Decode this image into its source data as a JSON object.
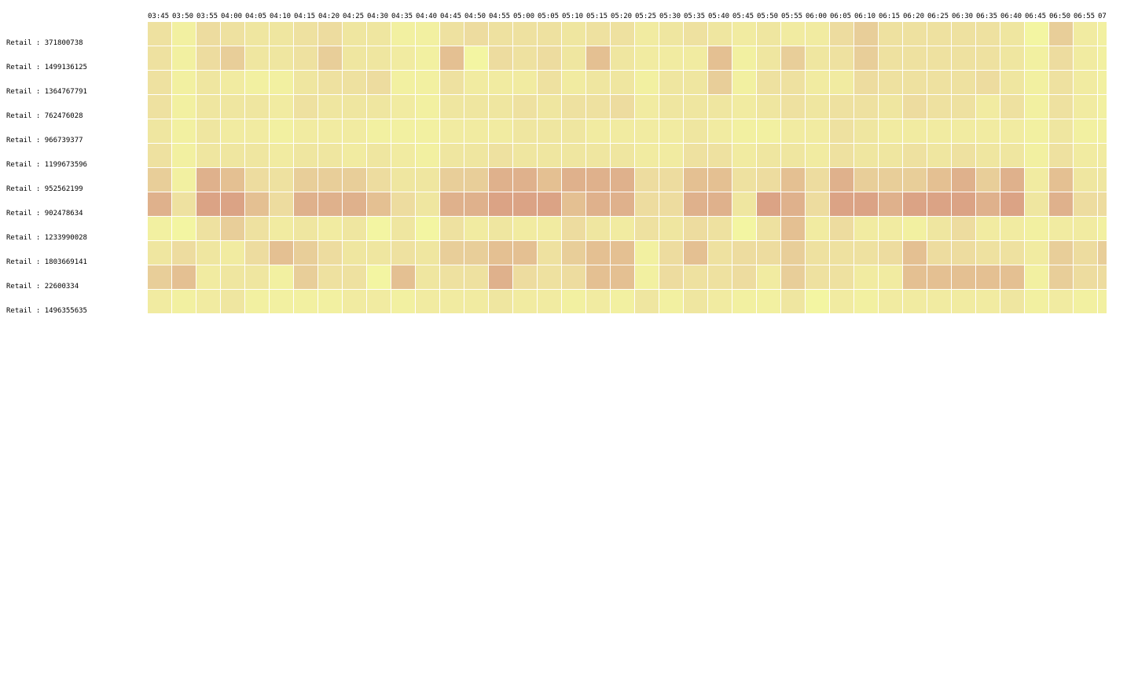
{
  "chart_data": {
    "type": "heatmap",
    "title": "",
    "xlabel": "",
    "ylabel": "",
    "color_scale": {
      "low": "#f3f5a2",
      "mid": "#eddc9f",
      "high": "#d6957f"
    },
    "value_range": [
      0,
      10
    ],
    "x": [
      "03:45",
      "03:50",
      "03:55",
      "04:00",
      "04:05",
      "04:10",
      "04:15",
      "04:20",
      "04:25",
      "04:30",
      "04:35",
      "04:40",
      "04:45",
      "04:50",
      "04:55",
      "05:00",
      "05:05",
      "05:10",
      "05:15",
      "05:20",
      "05:25",
      "05:30",
      "05:35",
      "05:40",
      "05:45",
      "05:50",
      "05:55",
      "06:00",
      "06:05",
      "06:10",
      "06:15",
      "06:20",
      "06:25",
      "06:30",
      "06:35",
      "06:40",
      "06:45",
      "06:50",
      "06:55",
      "07"
    ],
    "y": [
      "Retail : 371800738",
      "Retail : 1499136125",
      "Retail : 1364767791",
      "Retail : 762476028",
      "Retail : 966739377",
      "Retail : 1199673596",
      "Retail : 952562199",
      "Retail : 902478634",
      "Retail : 1233990028",
      "Retail : 1803669141",
      "Retail : 22600334",
      "Retail : 1496355635"
    ],
    "values": [
      [
        4,
        1,
        5,
        4,
        3,
        3,
        4,
        5,
        3,
        3,
        1,
        1,
        4,
        5,
        4,
        4,
        4,
        3,
        4,
        4,
        2,
        3,
        4,
        3,
        2,
        3,
        2,
        2,
        5,
        6,
        4,
        4,
        4,
        4,
        4,
        3,
        0,
        6,
        2,
        1
      ],
      [
        4,
        1,
        5,
        6,
        3,
        3,
        4,
        6,
        3,
        3,
        2,
        1,
        7,
        0,
        5,
        4,
        5,
        3,
        7,
        3,
        2,
        2,
        2,
        7,
        1,
        3,
        6,
        3,
        4,
        6,
        4,
        4,
        4,
        4,
        4,
        3,
        1,
        5,
        2,
        1
      ],
      [
        4,
        1,
        3,
        2,
        1,
        1,
        3,
        4,
        4,
        5,
        1,
        1,
        4,
        2,
        2,
        2,
        4,
        2,
        3,
        3,
        1,
        3,
        3,
        6,
        1,
        4,
        4,
        2,
        2,
        5,
        4,
        4,
        4,
        4,
        5,
        3,
        1,
        4,
        2,
        1
      ],
      [
        4,
        1,
        3,
        3,
        3,
        2,
        4,
        3,
        3,
        3,
        2,
        1,
        3,
        3,
        3,
        4,
        3,
        4,
        4,
        5,
        2,
        3,
        3,
        3,
        2,
        3,
        4,
        3,
        4,
        4,
        3,
        5,
        4,
        4,
        2,
        4,
        1,
        4,
        2,
        1
      ],
      [
        3,
        1,
        3,
        2,
        2,
        1,
        2,
        2,
        2,
        1,
        1,
        1,
        2,
        2,
        2,
        3,
        3,
        3,
        2,
        2,
        2,
        2,
        3,
        2,
        1,
        1,
        2,
        2,
        4,
        3,
        2,
        2,
        2,
        2,
        2,
        2,
        1,
        3,
        1,
        1
      ],
      [
        4,
        1,
        3,
        3,
        3,
        2,
        3,
        3,
        2,
        3,
        2,
        1,
        3,
        3,
        4,
        3,
        3,
        3,
        3,
        3,
        2,
        2,
        4,
        4,
        2,
        3,
        3,
        2,
        4,
        3,
        3,
        4,
        3,
        4,
        3,
        3,
        1,
        4,
        2,
        2
      ],
      [
        6,
        1,
        8,
        7,
        5,
        4,
        6,
        6,
        6,
        5,
        3,
        3,
        6,
        6,
        8,
        8,
        7,
        8,
        8,
        8,
        5,
        5,
        7,
        7,
        4,
        5,
        7,
        5,
        8,
        6,
        6,
        6,
        7,
        8,
        6,
        8,
        2,
        7,
        3,
        3
      ],
      [
        8,
        4,
        9,
        9,
        7,
        5,
        8,
        8,
        8,
        7,
        5,
        3,
        8,
        8,
        9,
        9,
        9,
        7,
        8,
        8,
        5,
        5,
        8,
        8,
        3,
        9,
        8,
        5,
        9,
        9,
        8,
        9,
        9,
        9,
        8,
        9,
        3,
        8,
        5,
        5
      ],
      [
        1,
        0,
        4,
        6,
        4,
        2,
        3,
        2,
        3,
        0,
        3,
        0,
        4,
        2,
        3,
        2,
        2,
        5,
        3,
        2,
        4,
        3,
        5,
        4,
        0,
        4,
        7,
        2,
        5,
        2,
        2,
        1,
        3,
        5,
        2,
        2,
        1,
        2,
        2,
        1
      ],
      [
        3,
        5,
        3,
        2,
        5,
        7,
        6,
        5,
        3,
        3,
        4,
        3,
        6,
        6,
        7,
        7,
        4,
        6,
        7,
        7,
        1,
        5,
        7,
        4,
        5,
        5,
        6,
        4,
        4,
        4,
        5,
        7,
        5,
        5,
        4,
        4,
        2,
        6,
        5,
        6
      ],
      [
        6,
        7,
        2,
        3,
        3,
        1,
        6,
        4,
        4,
        0,
        7,
        3,
        4,
        4,
        8,
        5,
        4,
        5,
        7,
        7,
        1,
        5,
        4,
        4,
        5,
        2,
        6,
        4,
        4,
        2,
        2,
        7,
        7,
        7,
        7,
        7,
        1,
        6,
        5,
        5
      ],
      [
        2,
        1,
        2,
        3,
        1,
        1,
        1,
        1,
        2,
        2,
        1,
        2,
        2,
        2,
        3,
        2,
        2,
        1,
        2,
        1,
        3,
        1,
        3,
        2,
        1,
        1,
        3,
        0,
        2,
        1,
        2,
        2,
        2,
        2,
        2,
        3,
        1,
        2,
        1,
        1
      ]
    ]
  }
}
